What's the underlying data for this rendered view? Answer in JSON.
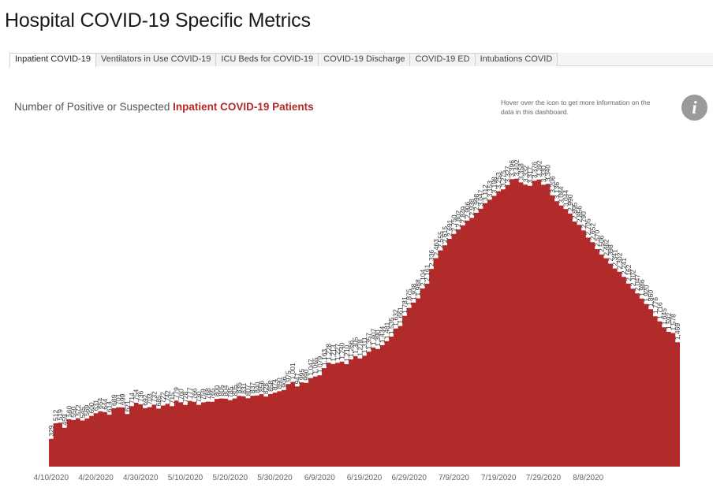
{
  "header": {
    "title": "Hospital COVID-19 Specific Metrics"
  },
  "tabs": [
    {
      "label": "Inpatient COVID-19",
      "active": true
    },
    {
      "label": "Ventilators in Use COVID-19",
      "active": false
    },
    {
      "label": "ICU Beds for COVID-19",
      "active": false
    },
    {
      "label": "COVID-19 Discharge",
      "active": false
    },
    {
      "label": "COVID-19 ED",
      "active": false
    },
    {
      "label": "Intubations COVID",
      "active": false
    }
  ],
  "subtitle": {
    "prefix": "Number of Positive or Suspected",
    "highlight": "Inpatient COVID-19 Patients"
  },
  "info": {
    "note": "Hover over the icon to get more information on the data in this dashboard.",
    "icon": "info-icon",
    "icon_glyph": "i"
  },
  "colors": {
    "fill": "#b22b2b",
    "highlight": "#b32a2a"
  },
  "chart_data": {
    "type": "area",
    "style": "step",
    "title": "",
    "xlabel": "",
    "ylabel": "",
    "x_start": "4/10/2020",
    "x_end": "8/10/2020",
    "x_tick_labels": [
      "4/10/2020",
      "4/20/2020",
      "4/30/2020",
      "5/10/2020",
      "5/20/2020",
      "5/30/2020",
      "6/9/2020",
      "6/19/2020",
      "6/29/2020",
      "7/9/2020",
      "7/19/2020",
      "7/29/2020",
      "8/8/2020"
    ],
    "ylim": [
      0,
      3650
    ],
    "grid": false,
    "values": [
      329,
      512,
      519,
      459,
      560,
      550,
      572,
      545,
      569,
      600,
      631,
      654,
      644,
      614,
      689,
      701,
      699,
      621,
      714,
      754,
      736,
      692,
      703,
      732,
      685,
      722,
      742,
      715,
      779,
      760,
      728,
      777,
      766,
      730,
      759,
      768,
      765,
      800,
      805,
      804,
      785,
      805,
      835,
      831,
      807,
      837,
      840,
      856,
      828,
      858,
      874,
      890,
      906,
      975,
      1001,
      947,
      995,
      990,
      1047,
      1065,
      1079,
      1163,
      1228,
      1213,
      1227,
      1240,
      1210,
      1266,
      1305,
      1278,
      1311,
      1357,
      1407,
      1390,
      1434,
      1481,
      1535,
      1632,
      1661,
      1781,
      1875,
      1938,
      1988,
      2104,
      2161,
      2336,
      2463,
      2555,
      2615,
      2691,
      2750,
      2802,
      2849,
      2906,
      2938,
      2998,
      3047,
      3112,
      3153,
      3198,
      3253,
      3275,
      3327,
      3396,
      3402,
      3358,
      3332,
      3317,
      3376,
      3392,
      3330,
      3340,
      3206,
      3136,
      3084,
      3044,
      2990,
      2895,
      2856,
      2790,
      2705,
      2652,
      2570,
      2506,
      2462,
      2398,
      2341,
      2302,
      2241,
      2162,
      2102,
      2047,
      1986,
      1920,
      1860,
      1776,
      1716,
      1645,
      1592,
      1578,
      1469
    ],
    "labeled_values": [
      329,
      512,
      519,
      459,
      560,
      550,
      572,
      545,
      569,
      600,
      631,
      654,
      644,
      614,
      689,
      701,
      699,
      621,
      714,
      754,
      736,
      692,
      703,
      732,
      685,
      722,
      742,
      715,
      779,
      760,
      728,
      777,
      766,
      730,
      759,
      768,
      765,
      800,
      805,
      804,
      785,
      805,
      835,
      831,
      807,
      837,
      840,
      856,
      828,
      858,
      874,
      890,
      906,
      975,
      1001,
      947,
      995,
      990,
      1047,
      1065,
      1079,
      1163,
      1228,
      1213,
      1227,
      1240,
      1210,
      1266,
      1305,
      1278,
      1311,
      1357,
      1407,
      1390,
      1434,
      1481,
      1535,
      1632,
      1661,
      1781,
      1875,
      1938,
      1988,
      2104,
      2161,
      2336,
      2463,
      2555,
      2615,
      2691,
      2750,
      2802,
      2849,
      2906,
      2938,
      2998,
      3047,
      3112,
      3153,
      3198,
      3253,
      3275,
      3327,
      3396,
      3402,
      3358,
      3332,
      3317,
      3376,
      3392,
      3330,
      3340,
      3206,
      3136,
      3084,
      3044,
      2990,
      2895,
      2856,
      2790,
      2705,
      2652,
      2570,
      2506,
      2462,
      2398,
      2341,
      2302,
      2241,
      2162,
      2102,
      2047,
      1986,
      1920,
      1860,
      1776,
      1716,
      1645,
      1592,
      1578,
      1469
    ]
  }
}
